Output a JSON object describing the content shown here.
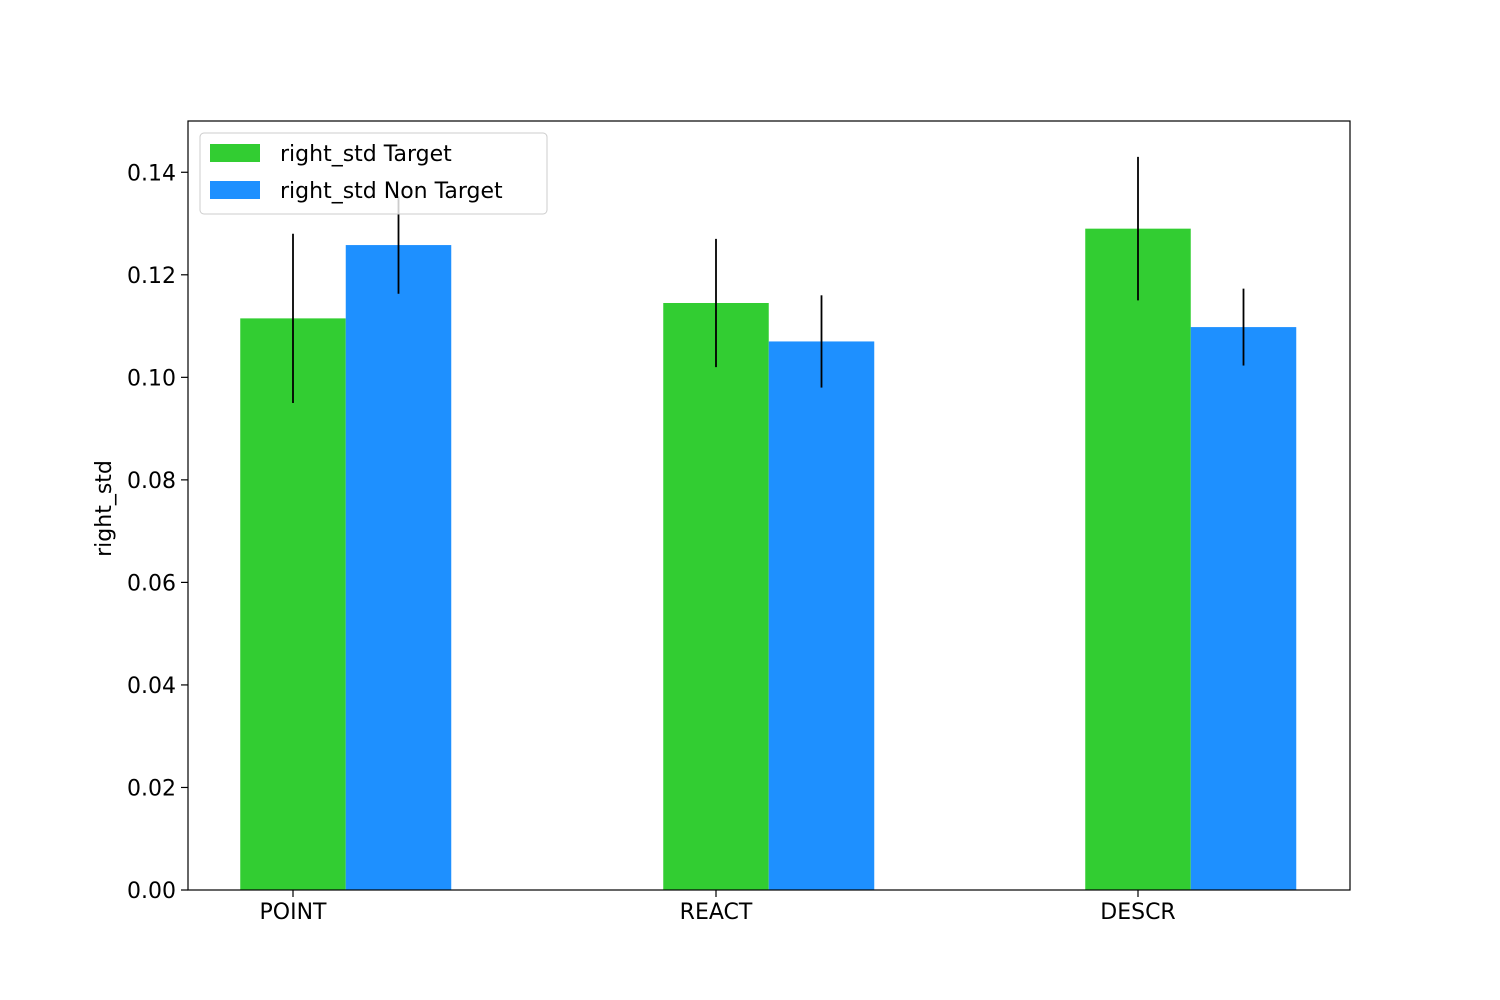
{
  "chart_data": {
    "type": "bar",
    "title": "",
    "xlabel": "",
    "ylabel": "right_std",
    "categories": [
      "POINT",
      "REACT",
      "DESCR"
    ],
    "series": [
      {
        "name": "right_std Target",
        "color": "#32cd32",
        "values": [
          0.1115,
          0.1145,
          0.129
        ],
        "errors": [
          0.0165,
          0.0125,
          0.014
        ]
      },
      {
        "name": "right_std Non Target",
        "color": "#1e90ff",
        "values": [
          0.1258,
          0.107,
          0.1098
        ],
        "errors": [
          0.0095,
          0.009,
          0.0075
        ]
      }
    ],
    "ylim": [
      0,
      0.15
    ],
    "yticks": [
      0.0,
      0.02,
      0.04,
      0.06,
      0.08,
      0.1,
      0.12,
      0.14
    ],
    "ytick_labels": [
      "0.00",
      "0.02",
      "0.04",
      "0.06",
      "0.08",
      "0.10",
      "0.12",
      "0.14"
    ],
    "grid": false,
    "legend_position": "top-left",
    "error_bar_color": "#000000"
  }
}
